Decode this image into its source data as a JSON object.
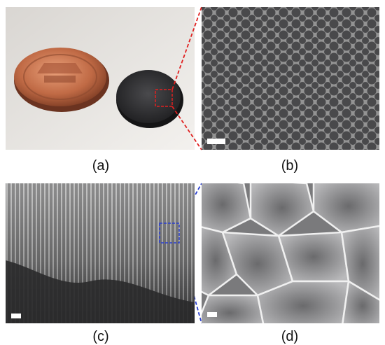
{
  "panels": {
    "a": {
      "label": "(a)",
      "content": "photo-penny-and-sample-disk"
    },
    "b": {
      "label": "(b)",
      "content": "sem-top-view-honeycomb-pores"
    },
    "c": {
      "label": "(c)",
      "content": "sem-side-view-vertical-channels"
    },
    "d": {
      "label": "(d)",
      "content": "sem-closeup-pore-walls"
    }
  },
  "colors": {
    "zoom_top": "#e02020",
    "zoom_bottom": "#2a3fd0",
    "scale_bar": "#ffffff",
    "penny": "#c06a45",
    "disk": "#2c2c2e"
  }
}
